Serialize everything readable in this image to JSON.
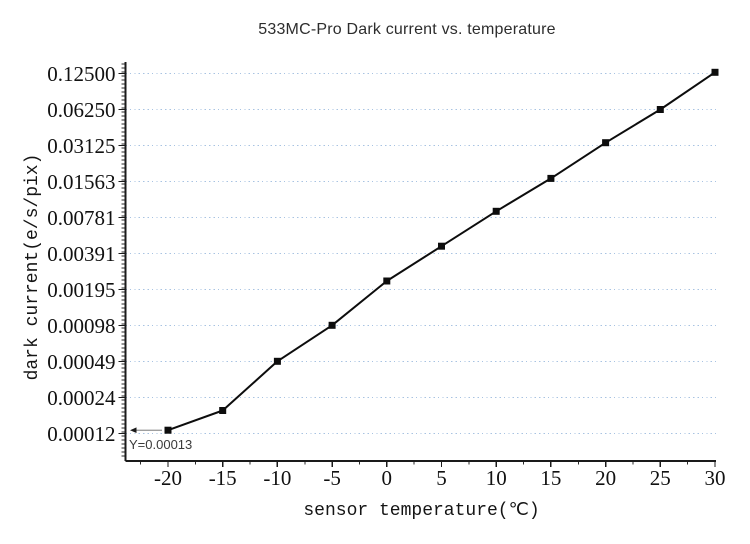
{
  "chart_data": {
    "type": "line",
    "title": "533MC-Pro Dark current vs. temperature",
    "xlabel": "sensor temperature(℃)",
    "ylabel": "dark current(e/s/pix)",
    "x": [
      -20,
      -15,
      -10,
      -5,
      0,
      5,
      10,
      15,
      20,
      25,
      30
    ],
    "series": [
      {
        "name": "dark current",
        "values": [
          0.00013,
          0.00019,
          0.00049,
          0.00098,
          0.0023,
          0.0045,
          0.0088,
          0.0166,
          0.033,
          0.0625,
          0.128
        ]
      }
    ],
    "x_tick_labels": [
      "-20",
      "-15",
      "-10",
      "-5",
      "0",
      "5",
      "10",
      "15",
      "20",
      "25",
      "30"
    ],
    "y_tick_labels": [
      "0.12500",
      "0.06250",
      "0.03125",
      "0.01563",
      "0.00781",
      "0.00391",
      "0.00195",
      "0.00098",
      "0.00049",
      "0.00024",
      "0.00012"
    ],
    "y_axis": {
      "scale": "log2",
      "top_value": 0.125,
      "bottom_value": 0.00012
    },
    "xlim": [
      -22.5,
      30
    ],
    "grid": {
      "visible": true,
      "orientation": "horizontal",
      "style": "dotted",
      "color": "#a8c3e2"
    },
    "marker": "filled-square",
    "marker_color": "#0d0d0d",
    "line_color": "#0d0d0d",
    "legend": "none",
    "annotation": {
      "text": "Y=0.00013",
      "arrow": "left",
      "x": -20,
      "y": 0.00013
    }
  }
}
